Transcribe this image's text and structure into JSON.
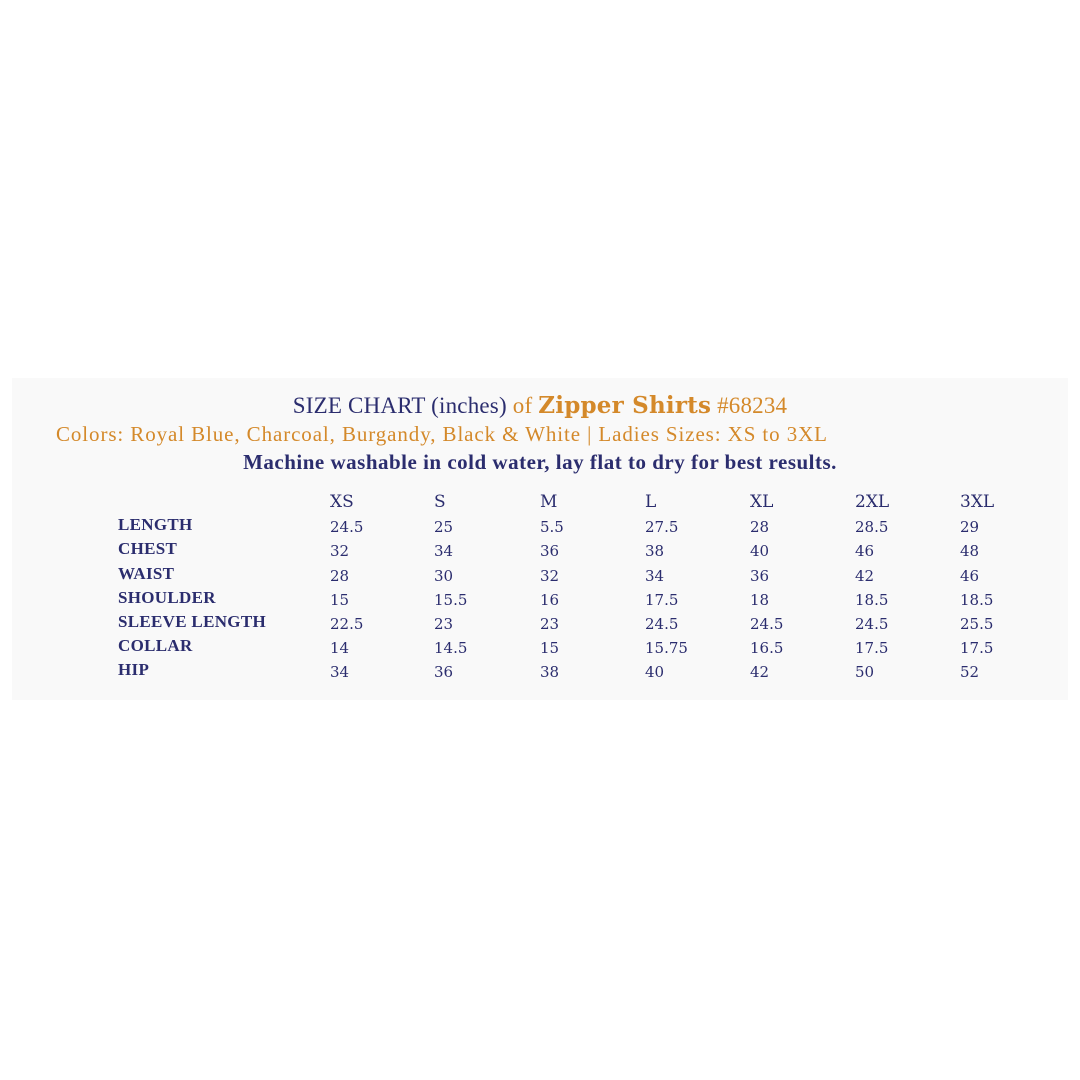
{
  "header": {
    "title_prefix": "SIZE CHART (inches)",
    "title_of": "of",
    "product_name": "Zipper Shirts",
    "product_number": "#68234",
    "colors_line": "Colors: Royal Blue, Charcoal, Burgandy, Black & White | Ladies Sizes: XS to 3XL",
    "care_line": "Machine washable in cold water, lay flat to dry for best results."
  },
  "colors": {
    "navy": "#2b2d6e",
    "orange": "#d4892a"
  },
  "table": {
    "columns": [
      "XS",
      "S",
      "M",
      "L",
      "XL",
      "2XL",
      "3XL"
    ],
    "rows": [
      {
        "label": "LENGTH",
        "values": [
          "24.5",
          "25",
          "5.5",
          "27.5",
          "28",
          "28.5",
          "29"
        ]
      },
      {
        "label": "CHEST",
        "values": [
          "32",
          "34",
          "36",
          "38",
          "40",
          "46",
          "48"
        ]
      },
      {
        "label": "WAIST",
        "values": [
          "28",
          "30",
          "32",
          "34",
          "36",
          "42",
          "46"
        ]
      },
      {
        "label": "SHOULDER",
        "values": [
          "15",
          "15.5",
          "16",
          "17.5",
          "18",
          "18.5",
          "18.5"
        ]
      },
      {
        "label": "SLEEVE LENGTH",
        "values": [
          "22.5",
          "23",
          "23",
          "24.5",
          "24.5",
          "24.5",
          "25.5"
        ]
      },
      {
        "label": "COLLAR",
        "values": [
          "14",
          "14.5",
          "15",
          "15.75",
          "16.5",
          "17.5",
          "17.5"
        ]
      },
      {
        "label": "HIP",
        "values": [
          "34",
          "36",
          "38",
          "40",
          "42",
          "50",
          "52"
        ]
      }
    ]
  }
}
